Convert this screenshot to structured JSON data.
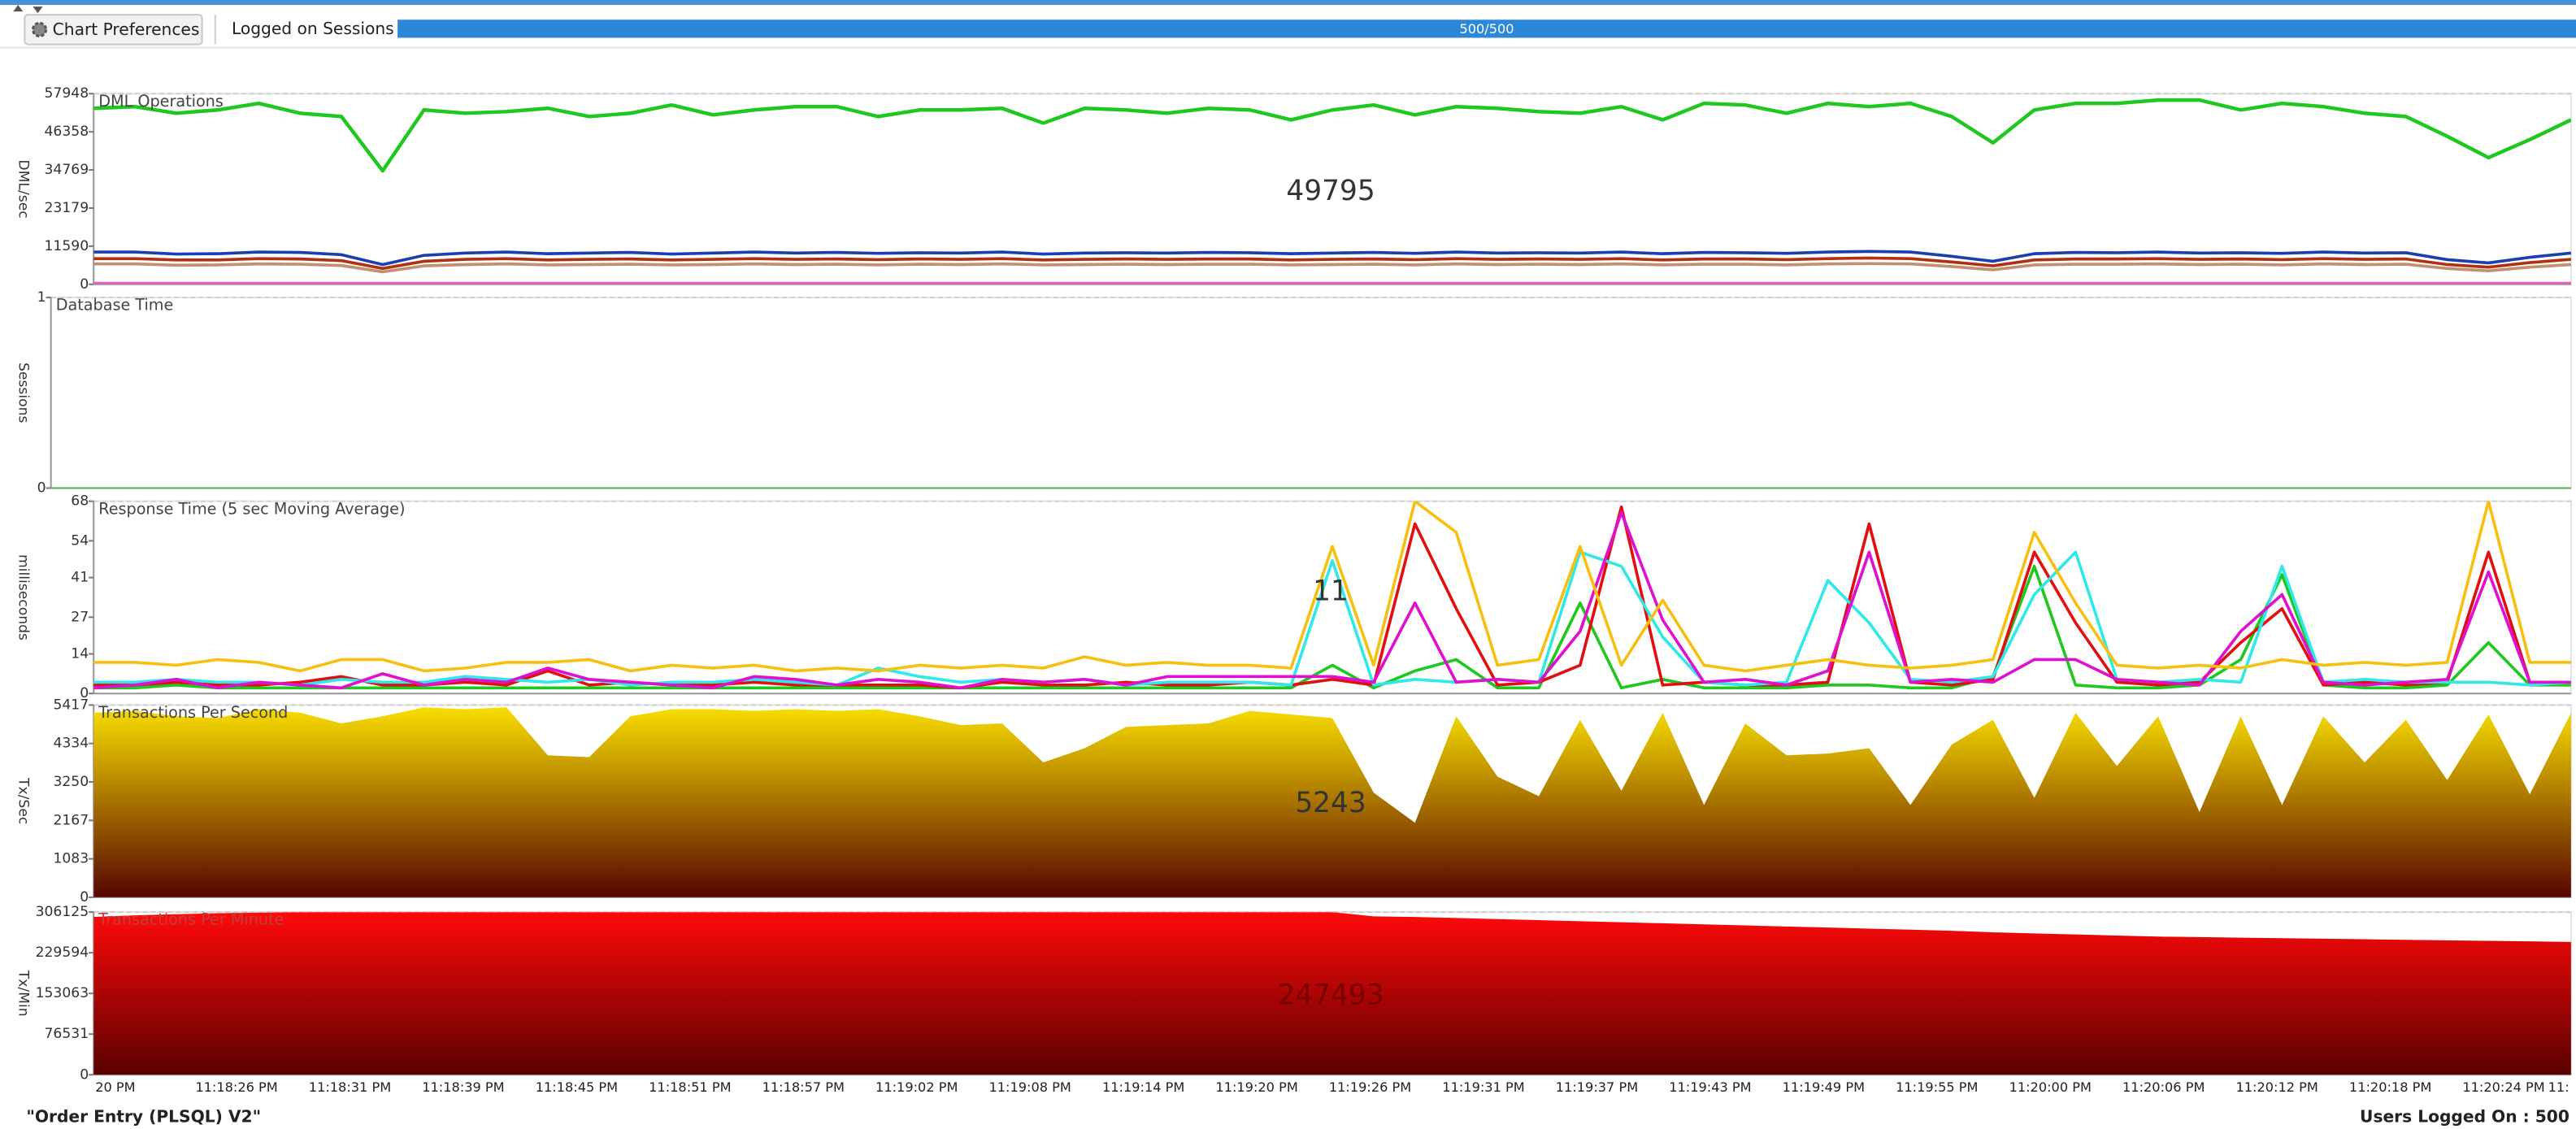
{
  "toolbar": {
    "button": "Chart Preferences",
    "sessions_label": "Logged on Sessions",
    "progress": {
      "value": 500,
      "max": 500,
      "label": "500/500"
    }
  },
  "charts": [
    {
      "type": "line",
      "title": "DML Operations",
      "y_label": "DML/sec",
      "big_value": 49795,
      "ylim": [
        0,
        57948
      ],
      "yticks": [
        57948,
        46358,
        34769,
        23179,
        11590,
        0
      ],
      "series": [
        {
          "color": "#1ec81e",
          "values": [
            53500,
            54000,
            52000,
            53000,
            55000,
            52000,
            51000,
            34500,
            53000,
            52000,
            52500,
            53500,
            51000,
            52000,
            54500,
            51500,
            53000,
            54000,
            54000,
            51000,
            53000,
            53000,
            53500,
            49000,
            53500,
            53000,
            52000,
            53500,
            53000,
            50000,
            53000,
            54500,
            51500,
            54000,
            53500,
            52500,
            52000,
            54000,
            50000,
            55000,
            54500,
            52000,
            55000,
            54000,
            55000,
            51000,
            43000,
            53000,
            55000,
            55000,
            56000,
            56000,
            53000,
            55000,
            54000,
            52000,
            51000,
            45000,
            38500,
            44000,
            50000
          ]
        },
        {
          "color": "#1c3fb0",
          "values": [
            9800,
            9800,
            9200,
            9300,
            9800,
            9700,
            9000,
            6000,
            8800,
            9500,
            9800,
            9300,
            9500,
            9700,
            9200,
            9500,
            9800,
            9500,
            9700,
            9400,
            9600,
            9500,
            9800,
            9200,
            9500,
            9600,
            9500,
            9700,
            9600,
            9300,
            9500,
            9700,
            9400,
            9800,
            9500,
            9600,
            9500,
            9800,
            9300,
            9700,
            9600,
            9400,
            9800,
            10000,
            9800,
            8500,
            7000,
            9300,
            9700,
            9600,
            9800,
            9500,
            9600,
            9400,
            9800,
            9500,
            9600,
            7500,
            6500,
            8200,
            9500
          ]
        },
        {
          "color": "#b03010",
          "values": [
            7800,
            7800,
            7400,
            7400,
            7800,
            7700,
            7200,
            4800,
            7000,
            7600,
            7800,
            7400,
            7600,
            7700,
            7400,
            7600,
            7800,
            7600,
            7700,
            7500,
            7700,
            7600,
            7800,
            7400,
            7600,
            7700,
            7600,
            7700,
            7700,
            7400,
            7600,
            7700,
            7500,
            7800,
            7600,
            7700,
            7600,
            7800,
            7400,
            7700,
            7700,
            7500,
            7800,
            8000,
            7800,
            6800,
            5600,
            7400,
            7700,
            7700,
            7800,
            7600,
            7700,
            7500,
            7800,
            7600,
            7700,
            6000,
            5200,
            6600,
            7600
          ]
        },
        {
          "color": "#c09070",
          "values": [
            6200,
            6200,
            5800,
            5900,
            6200,
            6100,
            5700,
            3800,
            5600,
            6000,
            6200,
            5900,
            6000,
            6100,
            5900,
            6000,
            6200,
            6000,
            6100,
            5900,
            6100,
            6000,
            6200,
            5900,
            6000,
            6100,
            6000,
            6100,
            6100,
            5900,
            6000,
            6100,
            5900,
            6200,
            6000,
            6100,
            6000,
            6200,
            5900,
            6100,
            6100,
            5900,
            6200,
            6300,
            6200,
            5400,
            4400,
            5900,
            6100,
            6100,
            6200,
            6000,
            6100,
            5900,
            6200,
            6000,
            6100,
            4800,
            4100,
            5200,
            6000
          ]
        },
        {
          "color": "#e060c0",
          "values": [
            300,
            300,
            300,
            300,
            300,
            300,
            300,
            300,
            300,
            300,
            300,
            300,
            300,
            300,
            300,
            300,
            300,
            300,
            300,
            300,
            300,
            300,
            300,
            300,
            300,
            300,
            300,
            300,
            300,
            300,
            300,
            300,
            300,
            300,
            300,
            300,
            300,
            300,
            300,
            300,
            300,
            300,
            300,
            300,
            300,
            300,
            300,
            300,
            300,
            300,
            300,
            300,
            300,
            300,
            300,
            300,
            300,
            300,
            300,
            300,
            300
          ]
        }
      ]
    },
    {
      "type": "line",
      "title": "Database Time",
      "y_label": "Sessions",
      "ylim": [
        0,
        1
      ],
      "yticks": [
        1,
        0
      ],
      "series": []
    },
    {
      "type": "line",
      "title": "Response Time (5 sec Moving Average)",
      "y_label": "milliseconds",
      "big_value": 11,
      "ylim": [
        0,
        68
      ],
      "yticks": [
        68,
        54,
        41,
        27,
        14,
        0
      ],
      "series": [
        {
          "color": "#1ec81e",
          "values": [
            2,
            2,
            3,
            2,
            2,
            2,
            2,
            2,
            2,
            2,
            2,
            2,
            2,
            2,
            2,
            2,
            2,
            2,
            2,
            2,
            2,
            2,
            2,
            2,
            2,
            2,
            2,
            2,
            2,
            2,
            10,
            2,
            8,
            12,
            2,
            2,
            32,
            2,
            5,
            2,
            2,
            2,
            3,
            3,
            2,
            2,
            6,
            45,
            3,
            2,
            2,
            3,
            12,
            42,
            3,
            2,
            2,
            3,
            18,
            3,
            3
          ]
        },
        {
          "color": "#e01010",
          "values": [
            3,
            3,
            4,
            3,
            3,
            4,
            6,
            3,
            3,
            4,
            3,
            8,
            3,
            4,
            3,
            3,
            4,
            3,
            3,
            3,
            3,
            2,
            4,
            3,
            3,
            4,
            3,
            3,
            4,
            3,
            5,
            3,
            60,
            30,
            3,
            4,
            10,
            66,
            3,
            4,
            3,
            3,
            4,
            60,
            4,
            3,
            5,
            50,
            25,
            4,
            3,
            4,
            18,
            30,
            3,
            4,
            3,
            4,
            50,
            4,
            4
          ]
        },
        {
          "color": "#30e8e8",
          "values": [
            4,
            4,
            5,
            4,
            4,
            3,
            5,
            4,
            4,
            6,
            5,
            4,
            5,
            3,
            4,
            4,
            5,
            4,
            3,
            9,
            6,
            4,
            5,
            4,
            5,
            3,
            4,
            4,
            4,
            3,
            47,
            3,
            5,
            4,
            5,
            4,
            50,
            45,
            20,
            4,
            3,
            4,
            40,
            25,
            5,
            4,
            6,
            35,
            50,
            5,
            4,
            5,
            4,
            45,
            4,
            5,
            4,
            4,
            4,
            3,
            4
          ]
        },
        {
          "color": "#e010d0",
          "values": [
            2,
            3,
            5,
            2,
            4,
            3,
            2,
            7,
            3,
            5,
            4,
            9,
            5,
            4,
            3,
            2,
            6,
            5,
            3,
            5,
            4,
            2,
            5,
            4,
            5,
            3,
            6,
            6,
            6,
            6,
            6,
            4,
            32,
            4,
            5,
            4,
            22,
            64,
            26,
            4,
            5,
            3,
            8,
            50,
            4,
            5,
            4,
            12,
            12,
            5,
            4,
            3,
            22,
            35,
            4,
            3,
            4,
            5,
            43,
            4,
            4
          ]
        },
        {
          "color": "#f5c010",
          "values": [
            11,
            11,
            10,
            12,
            11,
            8,
            12,
            12,
            8,
            9,
            11,
            11,
            12,
            8,
            10,
            9,
            10,
            8,
            9,
            8,
            10,
            9,
            10,
            9,
            13,
            10,
            11,
            10,
            10,
            9,
            52,
            10,
            68,
            57,
            10,
            12,
            52,
            10,
            33,
            10,
            8,
            10,
            12,
            10,
            9,
            10,
            12,
            57,
            32,
            10,
            9,
            10,
            9,
            12,
            10,
            11,
            10,
            11,
            68,
            11,
            11
          ]
        }
      ]
    },
    {
      "type": "area",
      "title": "Transactions Per Second",
      "y_label": "Tx/Sec",
      "big_value": 5243,
      "ylim": [
        0,
        5417
      ],
      "yticks": [
        5417,
        4334,
        3250,
        2167,
        1083,
        0
      ],
      "series": [
        {
          "colors": [
            "#f8de00",
            "#560500"
          ],
          "values": [
            5200,
            5250,
            5100,
            5050,
            5300,
            5200,
            4900,
            5100,
            5350,
            5300,
            5350,
            4000,
            3950,
            5100,
            5300,
            5300,
            5250,
            5300,
            5250,
            5300,
            5100,
            4850,
            4900,
            3800,
            4200,
            4800,
            4850,
            4900,
            5250,
            5150,
            5050,
            2950,
            2100,
            5100,
            3400,
            2850,
            5000,
            3000,
            5200,
            2600,
            4900,
            4000,
            4050,
            4200,
            2600,
            4300,
            5000,
            2800,
            5200,
            3700,
            5100,
            2400,
            5100,
            2600,
            5100,
            3800,
            5000,
            3300,
            5150,
            2900,
            5200
          ]
        }
      ]
    },
    {
      "type": "area",
      "title": "Transactions Per Minute",
      "y_label": "Tx/Min",
      "big_value": 247493,
      "ylim": [
        0,
        306125
      ],
      "yticks": [
        306125,
        229594,
        153063,
        76531,
        0
      ],
      "series": [
        {
          "colors": [
            "#ff0a0a",
            "#5a0000"
          ],
          "values": [
            297000,
            300000,
            302000,
            304000,
            305000,
            306000,
            306000,
            306000,
            306000,
            306000,
            306000,
            306000,
            306000,
            306000,
            306000,
            306000,
            306000,
            306000,
            306000,
            306000,
            306000,
            306000,
            306000,
            306000,
            306000,
            306000,
            306000,
            306000,
            306000,
            306000,
            306000,
            298000,
            297000,
            295000,
            293000,
            291000,
            289000,
            287000,
            285000,
            283000,
            281000,
            279000,
            277000,
            275000,
            273000,
            271000,
            268000,
            266000,
            264000,
            262000,
            260000,
            259000,
            258000,
            257000,
            256000,
            255000,
            254000,
            253000,
            252000,
            251000,
            250000
          ]
        }
      ]
    }
  ],
  "time_labels": [
    "20 PM",
    "11:18:26 PM",
    "11:18:31 PM",
    "11:18:39 PM",
    "11:18:45 PM",
    "11:18:51 PM",
    "11:18:57 PM",
    "11:19:02 PM",
    "11:19:08 PM",
    "11:19:14 PM",
    "11:19:20 PM",
    "11:19:26 PM",
    "11:19:31 PM",
    "11:19:37 PM",
    "11:19:43 PM",
    "11:19:49 PM",
    "11:19:55 PM",
    "11:20:00 PM",
    "11:20:06 PM",
    "11:20:12 PM",
    "11:20:18 PM",
    "11:20:24 PM",
    "11:"
  ],
  "footer": {
    "left": "\"Order Entry (PLSQL) V2\"",
    "right": "Users Logged On : 500"
  }
}
